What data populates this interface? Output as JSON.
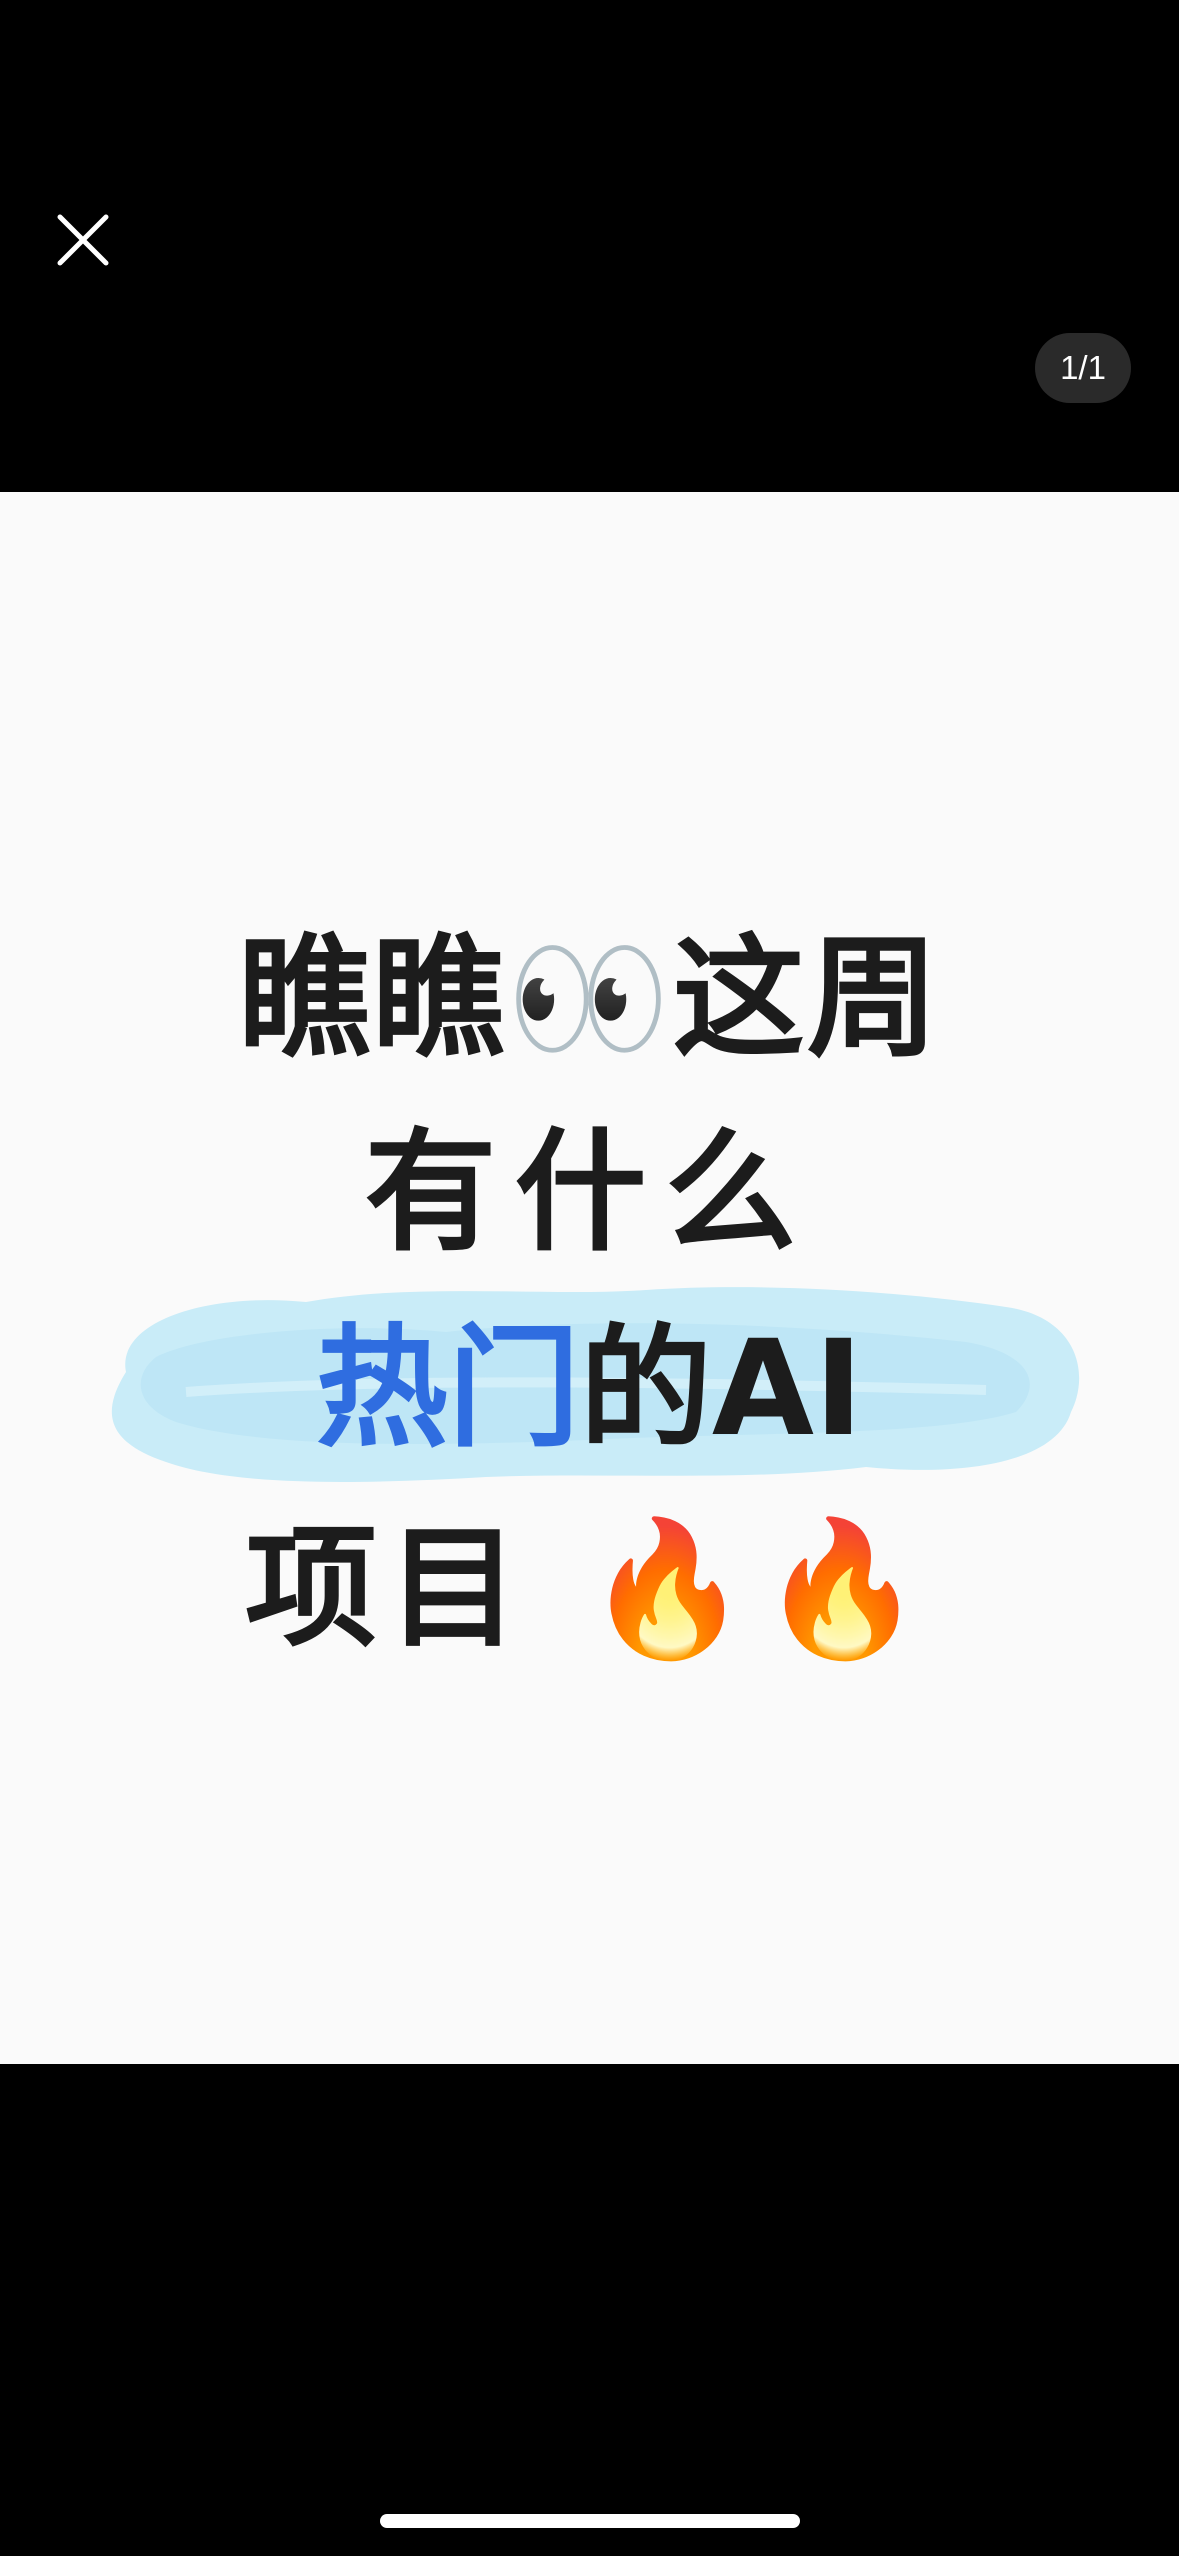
{
  "viewer": {
    "page_counter": "1/1"
  },
  "post_image": {
    "line_1_text": "瞧瞧",
    "line_1_emoji": "👀",
    "line_1_suffix": "这周",
    "line_2": "有什么",
    "line_3_highlight": "热门",
    "line_3_rest": "的AI",
    "line_4_text": "项目",
    "line_4_emoji": "🔥🔥"
  },
  "colors": {
    "highlight_text": "#2f6de0",
    "brush_highlight": "#c9ecf8",
    "background": "#000000",
    "image_background": "#fafafa"
  }
}
